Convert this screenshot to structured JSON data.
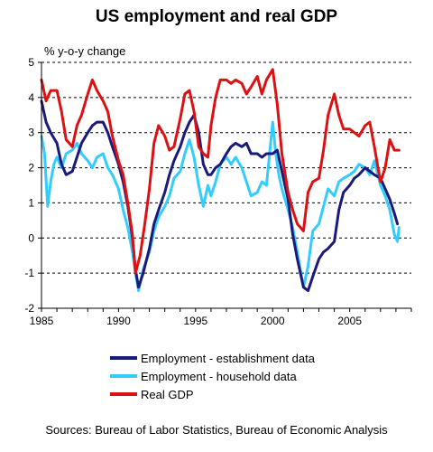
{
  "chart_data": {
    "type": "line",
    "title": "US employment and real GDP",
    "ylabel": "% y-o-y change",
    "xlabel": "",
    "xlim": [
      1985,
      2009
    ],
    "ylim": [
      -2,
      5
    ],
    "x_ticks": [
      "1985",
      "1990",
      "1995",
      "2000",
      "2005"
    ],
    "y_ticks": [
      "5",
      "4",
      "3",
      "2",
      "1",
      "0",
      "-1",
      "-2"
    ],
    "grid": "horizontal dashed",
    "legend_position": "bottom",
    "series": [
      {
        "name": "Employment - establishment data",
        "color": "#1a1a7a",
        "points": [
          [
            1985.0,
            3.9
          ],
          [
            1985.3,
            3.3
          ],
          [
            1985.6,
            3.0
          ],
          [
            1986.0,
            2.7
          ],
          [
            1986.3,
            2.1
          ],
          [
            1986.6,
            1.8
          ],
          [
            1987.0,
            1.9
          ],
          [
            1987.3,
            2.3
          ],
          [
            1987.6,
            2.7
          ],
          [
            1988.0,
            3.0
          ],
          [
            1988.3,
            3.2
          ],
          [
            1988.6,
            3.3
          ],
          [
            1989.0,
            3.3
          ],
          [
            1989.3,
            3.0
          ],
          [
            1989.6,
            2.6
          ],
          [
            1990.0,
            2.1
          ],
          [
            1990.3,
            1.6
          ],
          [
            1990.6,
            0.9
          ],
          [
            1990.9,
            0.0
          ],
          [
            1991.1,
            -0.9
          ],
          [
            1991.3,
            -1.4
          ],
          [
            1991.6,
            -1.0
          ],
          [
            1992.0,
            -0.3
          ],
          [
            1992.3,
            0.4
          ],
          [
            1992.6,
            0.8
          ],
          [
            1993.0,
            1.3
          ],
          [
            1993.3,
            1.8
          ],
          [
            1993.6,
            2.2
          ],
          [
            1994.0,
            2.6
          ],
          [
            1994.3,
            3.0
          ],
          [
            1994.6,
            3.3
          ],
          [
            1994.9,
            3.5
          ],
          [
            1995.2,
            3.0
          ],
          [
            1995.5,
            2.1
          ],
          [
            1995.8,
            1.8
          ],
          [
            1996.0,
            1.8
          ],
          [
            1996.3,
            2.0
          ],
          [
            1996.6,
            2.1
          ],
          [
            1997.0,
            2.4
          ],
          [
            1997.3,
            2.6
          ],
          [
            1997.6,
            2.7
          ],
          [
            1998.0,
            2.6
          ],
          [
            1998.3,
            2.7
          ],
          [
            1998.6,
            2.4
          ],
          [
            1999.0,
            2.4
          ],
          [
            1999.3,
            2.3
          ],
          [
            1999.6,
            2.4
          ],
          [
            2000.0,
            2.4
          ],
          [
            2000.3,
            2.5
          ],
          [
            2000.6,
            1.9
          ],
          [
            2001.0,
            1.1
          ],
          [
            2001.3,
            0.1
          ],
          [
            2001.6,
            -0.6
          ],
          [
            2002.0,
            -1.4
          ],
          [
            2002.3,
            -1.5
          ],
          [
            2002.6,
            -1.1
          ],
          [
            2003.0,
            -0.6
          ],
          [
            2003.3,
            -0.4
          ],
          [
            2003.6,
            -0.3
          ],
          [
            2004.0,
            -0.1
          ],
          [
            2004.3,
            0.8
          ],
          [
            2004.6,
            1.3
          ],
          [
            2005.0,
            1.5
          ],
          [
            2005.3,
            1.7
          ],
          [
            2005.6,
            1.8
          ],
          [
            2006.0,
            2.0
          ],
          [
            2006.3,
            1.9
          ],
          [
            2006.6,
            1.8
          ],
          [
            2007.0,
            1.7
          ],
          [
            2007.3,
            1.4
          ],
          [
            2007.6,
            1.1
          ],
          [
            2007.9,
            0.7
          ],
          [
            2008.1,
            0.4
          ]
        ]
      },
      {
        "name": "Employment - household data",
        "color": "#33ccff",
        "points": [
          [
            1985.0,
            2.9
          ],
          [
            1985.2,
            2.4
          ],
          [
            1985.4,
            0.9
          ],
          [
            1985.6,
            1.6
          ],
          [
            1985.8,
            2.1
          ],
          [
            1986.0,
            2.3
          ],
          [
            1986.3,
            2.0
          ],
          [
            1986.6,
            2.4
          ],
          [
            1987.0,
            2.5
          ],
          [
            1987.3,
            2.7
          ],
          [
            1987.6,
            2.4
          ],
          [
            1988.0,
            2.2
          ],
          [
            1988.3,
            2.0
          ],
          [
            1988.6,
            2.3
          ],
          [
            1989.0,
            2.4
          ],
          [
            1989.3,
            2.0
          ],
          [
            1989.6,
            1.8
          ],
          [
            1990.0,
            1.4
          ],
          [
            1990.3,
            0.8
          ],
          [
            1990.6,
            0.3
          ],
          [
            1990.9,
            -0.4
          ],
          [
            1991.1,
            -1.0
          ],
          [
            1991.3,
            -1.5
          ],
          [
            1991.6,
            -0.9
          ],
          [
            1992.0,
            -0.4
          ],
          [
            1992.3,
            0.2
          ],
          [
            1992.6,
            0.6
          ],
          [
            1993.0,
            0.9
          ],
          [
            1993.3,
            1.2
          ],
          [
            1993.6,
            1.7
          ],
          [
            1994.0,
            1.9
          ],
          [
            1994.3,
            2.4
          ],
          [
            1994.6,
            2.8
          ],
          [
            1994.9,
            2.3
          ],
          [
            1995.2,
            1.5
          ],
          [
            1995.5,
            0.9
          ],
          [
            1995.8,
            1.5
          ],
          [
            1996.0,
            1.2
          ],
          [
            1996.3,
            1.6
          ],
          [
            1996.6,
            2.1
          ],
          [
            1997.0,
            2.3
          ],
          [
            1997.3,
            2.1
          ],
          [
            1997.6,
            2.3
          ],
          [
            1998.0,
            2.0
          ],
          [
            1998.3,
            1.6
          ],
          [
            1998.6,
            1.2
          ],
          [
            1999.0,
            1.3
          ],
          [
            1999.3,
            1.6
          ],
          [
            1999.6,
            1.5
          ],
          [
            2000.0,
            3.3
          ],
          [
            2000.2,
            2.4
          ],
          [
            2000.4,
            1.8
          ],
          [
            2000.6,
            1.4
          ],
          [
            2001.0,
            0.8
          ],
          [
            2001.3,
            0.3
          ],
          [
            2001.6,
            -0.4
          ],
          [
            2002.0,
            -1.4
          ],
          [
            2002.3,
            -0.8
          ],
          [
            2002.6,
            0.2
          ],
          [
            2003.0,
            0.4
          ],
          [
            2003.3,
            0.9
          ],
          [
            2003.6,
            1.4
          ],
          [
            2004.0,
            1.2
          ],
          [
            2004.3,
            1.6
          ],
          [
            2004.6,
            1.7
          ],
          [
            2005.0,
            1.8
          ],
          [
            2005.3,
            1.9
          ],
          [
            2005.6,
            2.1
          ],
          [
            2006.0,
            2.0
          ],
          [
            2006.3,
            1.8
          ],
          [
            2006.6,
            2.2
          ],
          [
            2007.0,
            1.5
          ],
          [
            2007.3,
            1.2
          ],
          [
            2007.6,
            0.8
          ],
          [
            2007.9,
            0.1
          ],
          [
            2008.1,
            -0.1
          ],
          [
            2008.2,
            0.3
          ]
        ]
      },
      {
        "name": "Real GDP",
        "color": "#dd1111",
        "points": [
          [
            1985.0,
            4.5
          ],
          [
            1985.3,
            3.9
          ],
          [
            1985.6,
            4.2
          ],
          [
            1986.0,
            4.2
          ],
          [
            1986.3,
            3.6
          ],
          [
            1986.6,
            2.8
          ],
          [
            1987.0,
            2.6
          ],
          [
            1987.3,
            3.2
          ],
          [
            1987.6,
            3.5
          ],
          [
            1988.0,
            4.1
          ],
          [
            1988.3,
            4.5
          ],
          [
            1988.6,
            4.2
          ],
          [
            1989.0,
            3.9
          ],
          [
            1989.3,
            3.6
          ],
          [
            1989.6,
            2.9
          ],
          [
            1990.0,
            2.2
          ],
          [
            1990.3,
            1.8
          ],
          [
            1990.6,
            1.0
          ],
          [
            1990.9,
            0.1
          ],
          [
            1991.1,
            -1.0
          ],
          [
            1991.4,
            -0.5
          ],
          [
            1991.7,
            0.4
          ],
          [
            1992.0,
            1.4
          ],
          [
            1992.3,
            2.7
          ],
          [
            1992.6,
            3.2
          ],
          [
            1993.0,
            2.9
          ],
          [
            1993.3,
            2.5
          ],
          [
            1993.6,
            2.6
          ],
          [
            1994.0,
            3.4
          ],
          [
            1994.3,
            4.1
          ],
          [
            1994.6,
            4.2
          ],
          [
            1994.9,
            3.6
          ],
          [
            1995.2,
            2.6
          ],
          [
            1995.5,
            2.4
          ],
          [
            1995.8,
            2.3
          ],
          [
            1996.0,
            3.2
          ],
          [
            1996.3,
            4.0
          ],
          [
            1996.6,
            4.5
          ],
          [
            1997.0,
            4.5
          ],
          [
            1997.3,
            4.4
          ],
          [
            1997.6,
            4.5
          ],
          [
            1998.0,
            4.4
          ],
          [
            1998.3,
            4.1
          ],
          [
            1998.6,
            4.3
          ],
          [
            1999.0,
            4.6
          ],
          [
            1999.3,
            4.1
          ],
          [
            1999.6,
            4.5
          ],
          [
            2000.0,
            4.8
          ],
          [
            2000.3,
            3.8
          ],
          [
            2000.6,
            2.4
          ],
          [
            2001.0,
            1.3
          ],
          [
            2001.3,
            0.8
          ],
          [
            2001.6,
            0.4
          ],
          [
            2002.0,
            0.2
          ],
          [
            2002.3,
            1.3
          ],
          [
            2002.6,
            1.6
          ],
          [
            2003.0,
            1.7
          ],
          [
            2003.3,
            2.5
          ],
          [
            2003.6,
            3.5
          ],
          [
            2004.0,
            4.1
          ],
          [
            2004.3,
            3.5
          ],
          [
            2004.6,
            3.1
          ],
          [
            2005.0,
            3.1
          ],
          [
            2005.3,
            3.0
          ],
          [
            2005.6,
            2.9
          ],
          [
            2006.0,
            3.2
          ],
          [
            2006.3,
            3.3
          ],
          [
            2006.6,
            2.6
          ],
          [
            2007.0,
            1.6
          ],
          [
            2007.3,
            2.0
          ],
          [
            2007.6,
            2.8
          ],
          [
            2007.9,
            2.5
          ],
          [
            2008.2,
            2.5
          ]
        ]
      }
    ]
  },
  "footer": {
    "source_note": "Sources: Bureau of Labor Statistics, Bureau of Economic Analysis"
  }
}
